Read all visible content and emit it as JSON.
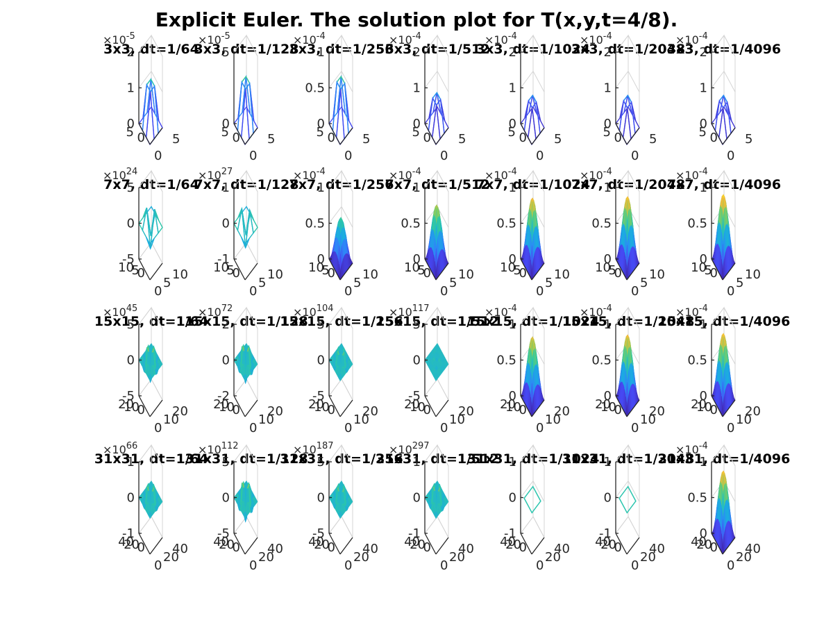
{
  "figure": {
    "title": "Explicit Euler. The solution plot for T(x,y,t=4/8).",
    "colormap": [
      "#3e26a8",
      "#4748f2",
      "#2e87f7",
      "#1cabe1",
      "#2ec9a5",
      "#8bcc5c",
      "#f6bc38",
      "#f9fb15"
    ],
    "background": "#ffffff",
    "grid_color": "#d4d4d4",
    "axis_color": "#262626",
    "view": "3-D surface plot, default view"
  },
  "chart_data": [
    {
      "type": "surface",
      "title": "3x3, dt=1/64",
      "z_exponent": "-5",
      "zticks": [
        "0",
        "1",
        "2"
      ],
      "xticks": [
        "0",
        "5"
      ],
      "yticks": [
        "0",
        "5"
      ],
      "zlim": [
        0,
        2
      ],
      "shape": "peak",
      "peak": 1.5,
      "lines": true
    },
    {
      "type": "surface",
      "title": "3x3, dt=1/128",
      "z_exponent": "-5",
      "zticks": [
        "0",
        "5"
      ],
      "xticks": [
        "0",
        "5"
      ],
      "yticks": [
        "0",
        "5"
      ],
      "zlim": [
        0,
        5
      ],
      "shape": "peak",
      "peak": 4.0,
      "lines": true
    },
    {
      "type": "surface",
      "title": "3x3, dt=1/256",
      "z_exponent": "-4",
      "zticks": [
        "0",
        "0.5",
        "1"
      ],
      "xticks": [
        "0",
        "5"
      ],
      "yticks": [
        "0",
        "5"
      ],
      "zlim": [
        0,
        1
      ],
      "shape": "peak",
      "peak": 0.8,
      "lines": true
    },
    {
      "type": "surface",
      "title": "3x3, dt=1/512",
      "z_exponent": "-4",
      "zticks": [
        "0",
        "1",
        "2"
      ],
      "xticks": [
        "0",
        "5"
      ],
      "yticks": [
        "0",
        "5"
      ],
      "zlim": [
        0,
        2
      ],
      "shape": "peak",
      "peak": 1.0,
      "lines": true
    },
    {
      "type": "surface",
      "title": "3x3, dt=1/1024",
      "z_exponent": "-4",
      "zticks": [
        "0",
        "1",
        "2"
      ],
      "xticks": [
        "0",
        "5"
      ],
      "yticks": [
        "0",
        "5"
      ],
      "zlim": [
        0,
        2
      ],
      "shape": "peak",
      "peak": 0.9,
      "lines": true
    },
    {
      "type": "surface",
      "title": "3x3, dt=1/2048",
      "z_exponent": "-4",
      "zticks": [
        "0",
        "1",
        "2"
      ],
      "xticks": [
        "0",
        "5"
      ],
      "yticks": [
        "0",
        "5"
      ],
      "zlim": [
        0,
        2
      ],
      "shape": "peak",
      "peak": 0.9,
      "lines": true
    },
    {
      "type": "surface",
      "title": "3x3, dt=1/4096",
      "z_exponent": "-4",
      "zticks": [
        "0",
        "1",
        "2"
      ],
      "xticks": [
        "0",
        "5"
      ],
      "yticks": [
        "0",
        "5"
      ],
      "zlim": [
        0,
        2
      ],
      "shape": "peak",
      "peak": 0.9,
      "lines": true
    },
    {
      "type": "surface",
      "title": "7x7, dt=1/64",
      "z_exponent": "24",
      "zticks": [
        "-5",
        "0",
        "5"
      ],
      "xticks": [
        "0",
        "5",
        "10"
      ],
      "yticks": [
        "0",
        "5",
        "10"
      ],
      "zlim": [
        -5,
        5
      ],
      "shape": "oscillating",
      "amplitude": 4.2,
      "lines": true
    },
    {
      "type": "surface",
      "title": "7x7, dt=1/128",
      "z_exponent": "27",
      "zticks": [
        "-1",
        "0",
        "1"
      ],
      "xticks": [
        "0",
        "5",
        "10"
      ],
      "yticks": [
        "0",
        "5",
        "10"
      ],
      "zlim": [
        -1,
        1
      ],
      "shape": "oscillating",
      "amplitude": 0.8,
      "lines": true
    },
    {
      "type": "surface",
      "title": "7x7, dt=1/256",
      "z_exponent": "-4",
      "zticks": [
        "0",
        "0.5",
        "1"
      ],
      "xticks": [
        "0",
        "5",
        "10"
      ],
      "yticks": [
        "0",
        "5",
        "10"
      ],
      "zlim": [
        0,
        1
      ],
      "shape": "peak",
      "peak": 0.6,
      "lines": false
    },
    {
      "type": "surface",
      "title": "7x7, dt=1/512",
      "z_exponent": "-4",
      "zticks": [
        "0",
        "0.5",
        "1"
      ],
      "xticks": [
        "0",
        "5",
        "10"
      ],
      "yticks": [
        "0",
        "5",
        "10"
      ],
      "zlim": [
        0,
        1
      ],
      "shape": "peak",
      "peak": 0.78,
      "lines": false
    },
    {
      "type": "surface",
      "title": "7x7, dt=1/1024",
      "z_exponent": "-4",
      "zticks": [
        "0",
        "0.5",
        "1"
      ],
      "xticks": [
        "0",
        "5",
        "10"
      ],
      "yticks": [
        "0",
        "5",
        "10"
      ],
      "zlim": [
        0,
        1
      ],
      "shape": "peak",
      "peak": 0.88,
      "lines": false
    },
    {
      "type": "surface",
      "title": "7x7, dt=1/2048",
      "z_exponent": "-4",
      "zticks": [
        "0",
        "0.5",
        "1"
      ],
      "xticks": [
        "0",
        "5",
        "10"
      ],
      "yticks": [
        "0",
        "5",
        "10"
      ],
      "zlim": [
        0,
        1
      ],
      "shape": "peak",
      "peak": 0.9,
      "lines": false
    },
    {
      "type": "surface",
      "title": "7x7, dt=1/4096",
      "z_exponent": "-4",
      "zticks": [
        "0",
        "0.5",
        "1"
      ],
      "xticks": [
        "0",
        "5",
        "10"
      ],
      "yticks": [
        "0",
        "5",
        "10"
      ],
      "zlim": [
        0,
        1
      ],
      "shape": "peak",
      "peak": 0.93,
      "lines": false
    },
    {
      "type": "surface",
      "title": "15x15, dt=1/64",
      "z_exponent": "45",
      "zticks": [
        "-5",
        "0",
        "5"
      ],
      "xticks": [
        "0",
        "10",
        "20"
      ],
      "yticks": [
        "0",
        "10",
        "20"
      ],
      "zlim": [
        -5,
        5
      ],
      "shape": "oscillating",
      "amplitude": 3.5,
      "lines": false
    },
    {
      "type": "surface",
      "title": "15x15, dt=1/128",
      "z_exponent": "72",
      "zticks": [
        "-2",
        "0",
        "2"
      ],
      "xticks": [
        "0",
        "10",
        "20"
      ],
      "yticks": [
        "0",
        "10",
        "20"
      ],
      "zlim": [
        -2,
        2
      ],
      "shape": "oscillating",
      "amplitude": 1.5,
      "lines": false
    },
    {
      "type": "surface",
      "title": "15x15, dt=1/256",
      "z_exponent": "104",
      "zticks": [
        "-5",
        "0",
        "5"
      ],
      "xticks": [
        "0",
        "10",
        "20"
      ],
      "yticks": [
        "0",
        "10",
        "20"
      ],
      "zlim": [
        -5,
        5
      ],
      "shape": "oscillating",
      "amplitude": 2.5,
      "lines": false
    },
    {
      "type": "surface",
      "title": "15x15, dt=1/512",
      "z_exponent": "117",
      "zticks": [
        "-5",
        "0",
        "5"
      ],
      "xticks": [
        "0",
        "10",
        "20"
      ],
      "yticks": [
        "0",
        "10",
        "20"
      ],
      "zlim": [
        -5,
        5
      ],
      "shape": "oscillating",
      "amplitude": 0.6,
      "lines": false
    },
    {
      "type": "surface",
      "title": "15x15, dt=1/1024",
      "z_exponent": "-4",
      "zticks": [
        "0",
        "0.5",
        "1"
      ],
      "xticks": [
        "0",
        "10",
        "20"
      ],
      "yticks": [
        "0",
        "10",
        "20"
      ],
      "zlim": [
        0,
        1
      ],
      "shape": "peak",
      "peak": 0.85,
      "lines": false
    },
    {
      "type": "surface",
      "title": "15x15, dt=1/2048",
      "z_exponent": "-4",
      "zticks": [
        "0",
        "0.5",
        "1"
      ],
      "xticks": [
        "0",
        "10",
        "20"
      ],
      "yticks": [
        "0",
        "10",
        "20"
      ],
      "zlim": [
        0,
        1
      ],
      "shape": "peak",
      "peak": 0.88,
      "lines": false
    },
    {
      "type": "surface",
      "title": "15x15, dt=1/4096",
      "z_exponent": "-4",
      "zticks": [
        "0",
        "0.5",
        "1"
      ],
      "xticks": [
        "0",
        "10",
        "20"
      ],
      "yticks": [
        "0",
        "10",
        "20"
      ],
      "zlim": [
        0,
        1
      ],
      "shape": "peak",
      "peak": 0.9,
      "lines": false
    },
    {
      "type": "surface",
      "title": "31x31, dt=1/64",
      "z_exponent": "66",
      "zticks": [
        "-1",
        "0",
        "1"
      ],
      "xticks": [
        "0",
        "20",
        "40"
      ],
      "yticks": [
        "0",
        "20",
        "40"
      ],
      "zlim": [
        -1,
        1
      ],
      "shape": "oscillating",
      "amplitude": 0.6,
      "lines": false
    },
    {
      "type": "surface",
      "title": "31x31, dt=1/128",
      "z_exponent": "112",
      "zticks": [
        "-5",
        "0",
        "5"
      ],
      "xticks": [
        "0",
        "20",
        "40"
      ],
      "yticks": [
        "0",
        "20",
        "40"
      ],
      "zlim": [
        -5,
        5
      ],
      "shape": "oscillating",
      "amplitude": 4.0,
      "lines": false
    },
    {
      "type": "surface",
      "title": "31x31, dt=1/256",
      "z_exponent": "187",
      "zticks": [
        "-5",
        "0",
        "5"
      ],
      "xticks": [
        "0",
        "20",
        "40"
      ],
      "yticks": [
        "0",
        "20",
        "40"
      ],
      "zlim": [
        -5,
        5
      ],
      "shape": "oscillating",
      "amplitude": 2.8,
      "lines": false
    },
    {
      "type": "surface",
      "title": "31x31, dt=1/512",
      "z_exponent": "297",
      "zticks": [
        "-1",
        "0",
        "1"
      ],
      "xticks": [
        "0",
        "20",
        "40"
      ],
      "yticks": [
        "0",
        "20",
        "40"
      ],
      "zlim": [
        -1,
        1
      ],
      "shape": "oscillating",
      "amplitude": 0.6,
      "lines": false
    },
    {
      "type": "surface",
      "title": "31x31, dt=1/1024",
      "z_exponent": "",
      "zticks": [
        "-1",
        "0",
        "1"
      ],
      "xticks": [
        "0",
        "20",
        "40"
      ],
      "yticks": [
        "0",
        "20",
        "40"
      ],
      "zlim": [
        -1,
        1
      ],
      "shape": "empty",
      "lines": false
    },
    {
      "type": "surface",
      "title": "31x31, dt=1/2048",
      "z_exponent": "",
      "zticks": [
        "-1",
        "0",
        "1"
      ],
      "xticks": [
        "0",
        "20",
        "40"
      ],
      "yticks": [
        "0",
        "20",
        "40"
      ],
      "zlim": [
        -1,
        1
      ],
      "shape": "empty",
      "lines": false
    },
    {
      "type": "surface",
      "title": "31x31, dt=1/4096",
      "z_exponent": "-4",
      "zticks": [
        "0",
        "0.5",
        "1"
      ],
      "xticks": [
        "0",
        "20",
        "40"
      ],
      "yticks": [
        "0",
        "20",
        "40"
      ],
      "zlim": [
        0,
        1
      ],
      "shape": "peak",
      "peak": 0.9,
      "lines": false
    }
  ]
}
